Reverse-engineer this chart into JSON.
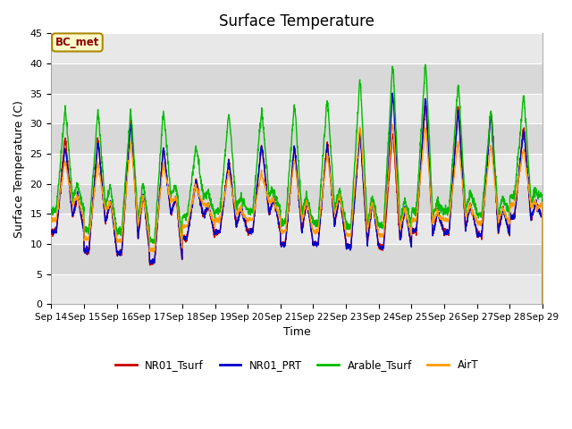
{
  "title": "Surface Temperature",
  "ylabel": "Surface Temperature (C)",
  "xlabel": "Time",
  "ylim": [
    0,
    45
  ],
  "yticks": [
    0,
    5,
    10,
    15,
    20,
    25,
    30,
    35,
    40,
    45
  ],
  "annotation_text": "BC_met",
  "bg_color": "#e8e8e8",
  "fig_bg_color": "#ffffff",
  "legend_labels": [
    "NR01_Tsurf",
    "NR01_PRT",
    "Arable_Tsurf",
    "AirT"
  ],
  "line_colors": [
    "#cc0000",
    "#0000cc",
    "#00bb00",
    "#ff9900"
  ],
  "line_width": 1.0,
  "xtick_labels": [
    "Sep 14",
    "Sep 15",
    "Sep 16",
    "Sep 17",
    "Sep 18",
    "Sep 19",
    "Sep 20",
    "Sep 21",
    "Sep 22",
    "Sep 23",
    "Sep 24",
    "Sep 25",
    "Sep 26",
    "Sep 27",
    "Sep 28",
    "Sep 29"
  ],
  "n_days": 15,
  "pts_per_day": 144,
  "band_colors": [
    "#d8d8d8",
    "#e8e8e8"
  ],
  "band_ranges": [
    [
      0,
      5
    ],
    [
      5,
      10
    ],
    [
      10,
      15
    ],
    [
      15,
      20
    ],
    [
      20,
      25
    ],
    [
      25,
      30
    ],
    [
      30,
      35
    ],
    [
      35,
      40
    ],
    [
      40,
      45
    ]
  ],
  "band_color_cycle": [
    "#e8e8e8",
    "#d8d8d8",
    "#e8e8e8",
    "#d8d8d8",
    "#e8e8e8",
    "#d8d8d8",
    "#e8e8e8",
    "#d8d8d8",
    "#e8e8e8"
  ],
  "daily_data": {
    "night_min": [
      12.0,
      8.8,
      8.5,
      7.0,
      11.0,
      12.0,
      12.0,
      10.0,
      10.0,
      9.5,
      9.5,
      12.0,
      12.0,
      11.5,
      14.5
    ],
    "peak1_time": [
      0.42,
      0.42,
      0.42,
      0.42,
      0.42,
      0.42,
      0.42,
      0.42,
      0.42,
      0.42,
      0.42,
      0.42,
      0.42,
      0.42,
      0.42
    ],
    "peak1_red": [
      27.5,
      27.5,
      30.5,
      26.0,
      21.0,
      24.0,
      26.5,
      26.0,
      27.0,
      28.5,
      28.5,
      33.0,
      33.0,
      32.0,
      29.5
    ],
    "peak1_blue": [
      26.0,
      27.0,
      30.0,
      26.0,
      20.5,
      23.5,
      26.5,
      26.0,
      26.5,
      28.0,
      35.0,
      34.5,
      32.0,
      31.5,
      29.0
    ],
    "peak1_green": [
      32.5,
      32.0,
      32.0,
      32.0,
      26.5,
      31.5,
      32.0,
      33.0,
      34.0,
      37.0,
      39.5,
      39.5,
      36.5,
      32.0,
      34.5
    ],
    "peak1_orange": [
      24.0,
      23.5,
      27.0,
      23.5,
      20.0,
      22.0,
      22.0,
      24.0,
      25.0,
      29.5,
      30.0,
      29.5,
      27.0,
      26.5,
      26.0
    ],
    "trough_time": [
      0.65,
      0.65,
      0.65,
      0.65,
      0.65,
      0.65,
      0.65,
      0.65,
      0.65,
      0.65,
      0.65,
      0.65,
      0.65,
      0.65,
      0.65
    ],
    "trough_val": [
      14.5,
      13.5,
      11.0,
      15.0,
      14.5,
      13.0,
      15.0,
      12.0,
      13.0,
      10.0,
      10.5,
      11.5,
      12.5,
      12.0,
      14.0
    ],
    "peak2_time": [
      0.8,
      0.8,
      0.8,
      0.8,
      0.8,
      0.8,
      0.8,
      0.8,
      0.8,
      0.8,
      0.8,
      0.8,
      0.8,
      0.8,
      0.8
    ],
    "peak2_red": [
      18.0,
      17.0,
      18.0,
      17.5,
      16.5,
      16.0,
      17.5,
      17.0,
      18.0,
      17.0,
      16.0,
      15.5,
      16.5,
      16.0,
      17.0
    ],
    "peak2_green": [
      20.0,
      19.5,
      20.0,
      19.5,
      18.5,
      18.0,
      19.0,
      18.0,
      19.0,
      18.0,
      17.5,
      17.5,
      18.5,
      18.0,
      19.0
    ]
  }
}
